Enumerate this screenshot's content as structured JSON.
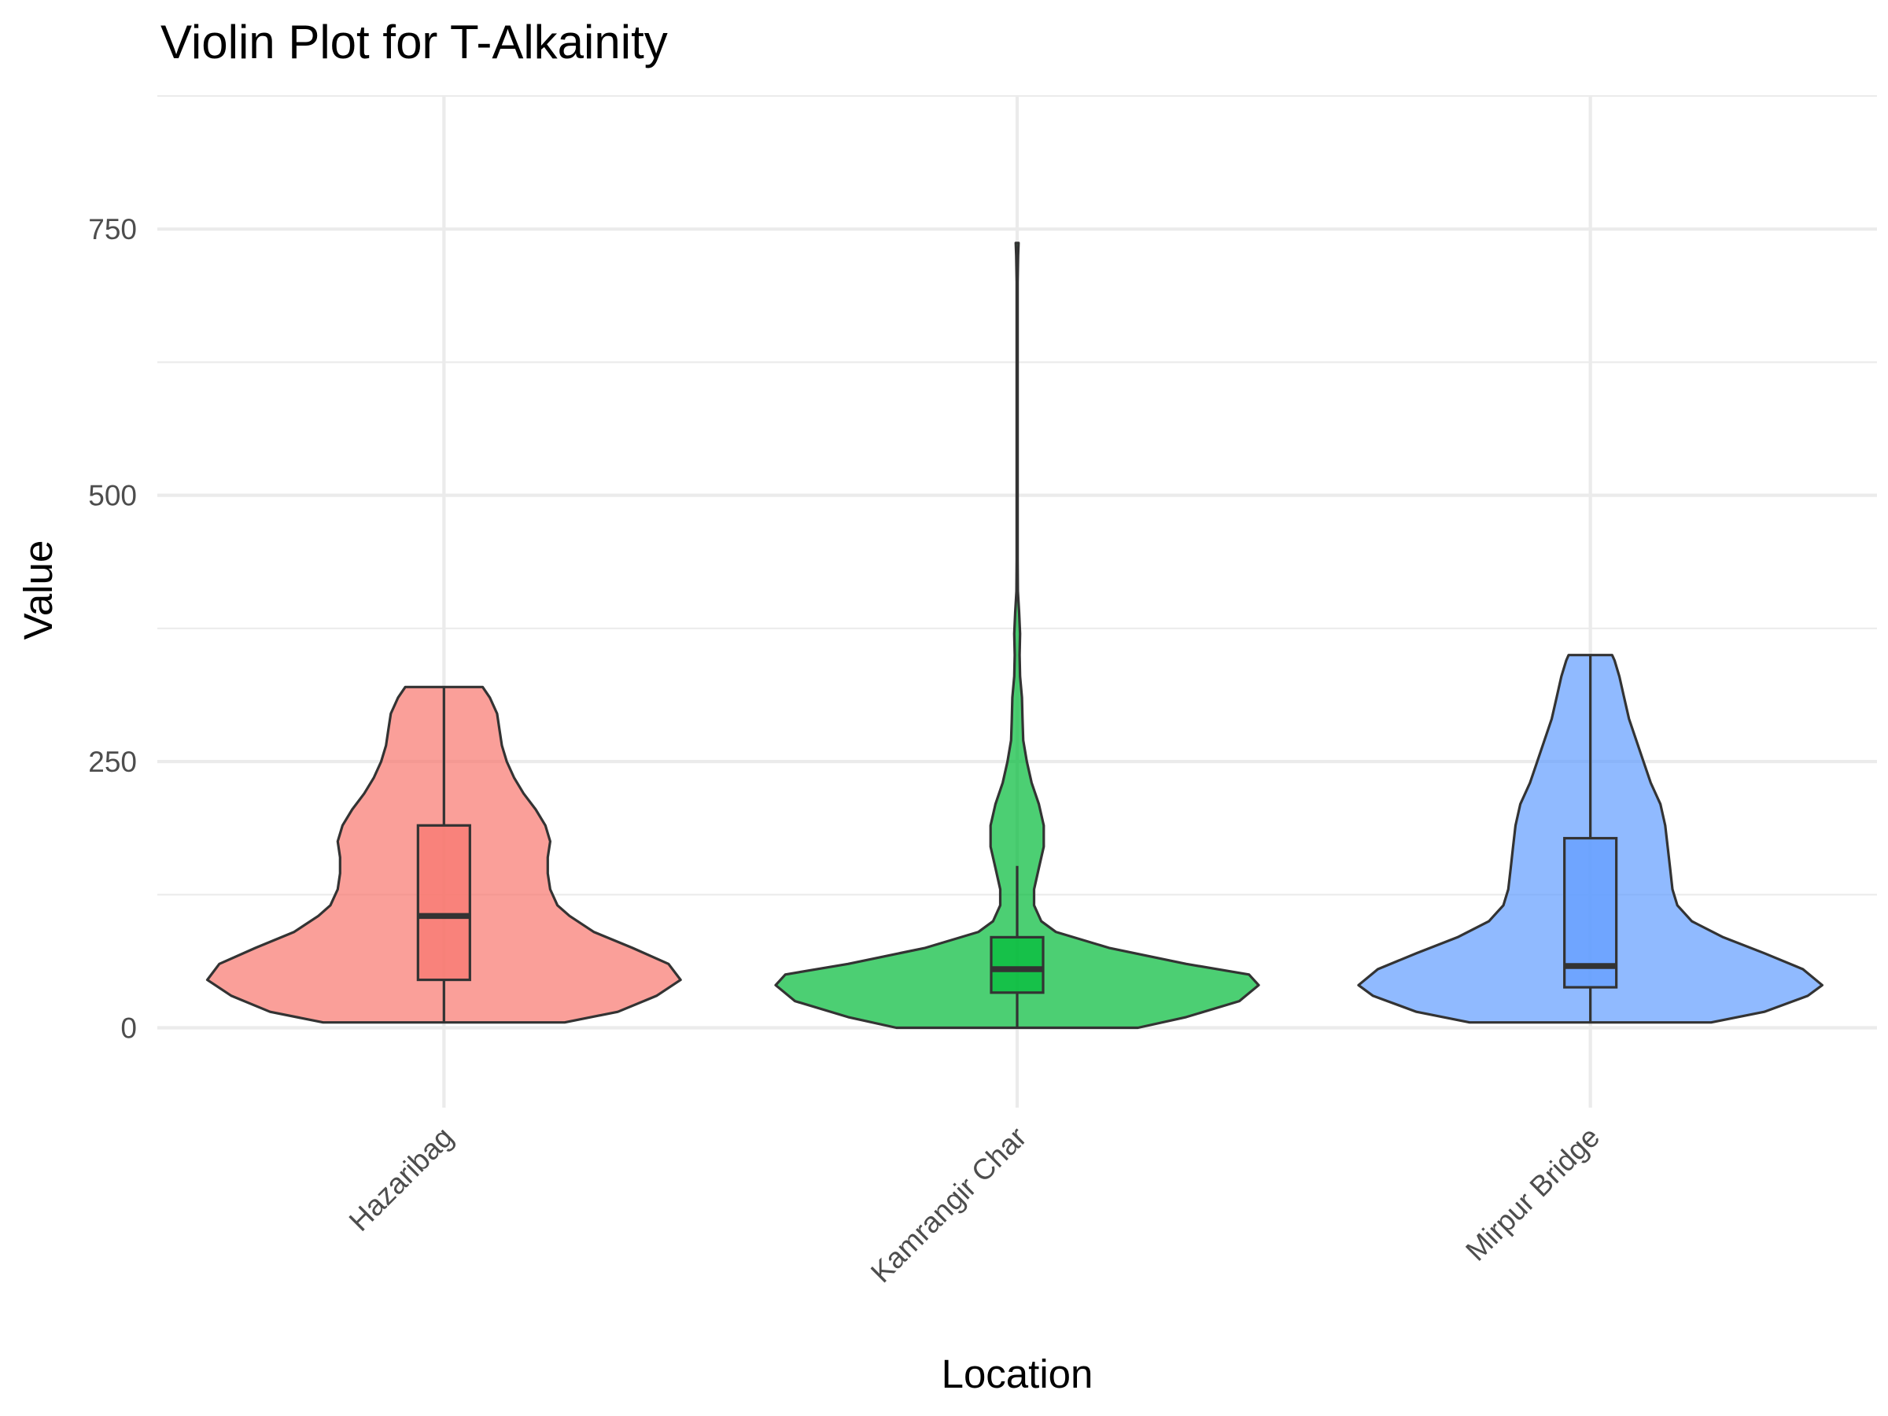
{
  "title": "Violin Plot for T-Alkainity",
  "chart_data": {
    "type": "violin",
    "title": "Violin Plot for T-Alkainity",
    "xlabel": "Location",
    "ylabel": "Value",
    "ylim": [
      -75,
      875
    ],
    "y_ticks": [
      0,
      250,
      500,
      750
    ],
    "y_tick_labels": [
      "0",
      "250",
      "500",
      "750"
    ],
    "grid": true,
    "legend": "none",
    "categories": [
      "Hazaribag",
      "Kamrangir Char",
      "Mirpur Bridge"
    ],
    "series": [
      {
        "category": "Hazaribag",
        "color": "#F8766D",
        "box": {
          "whisker_low": 5,
          "q1": 45,
          "median": 105,
          "q3": 190,
          "whisker_high": 320
        },
        "density": [
          [
            5,
            0.5
          ],
          [
            15,
            0.72
          ],
          [
            30,
            0.88
          ],
          [
            45,
            0.98
          ],
          [
            60,
            0.93
          ],
          [
            75,
            0.78
          ],
          [
            90,
            0.62
          ],
          [
            105,
            0.52
          ],
          [
            115,
            0.47
          ],
          [
            130,
            0.44
          ],
          [
            145,
            0.43
          ],
          [
            160,
            0.43
          ],
          [
            175,
            0.44
          ],
          [
            190,
            0.42
          ],
          [
            205,
            0.38
          ],
          [
            220,
            0.33
          ],
          [
            235,
            0.29
          ],
          [
            250,
            0.26
          ],
          [
            265,
            0.24
          ],
          [
            280,
            0.23
          ],
          [
            295,
            0.22
          ],
          [
            310,
            0.19
          ],
          [
            320,
            0.16
          ]
        ]
      },
      {
        "category": "Kamrangir Char",
        "color": "#00BA38",
        "box": {
          "whisker_low": 0,
          "q1": 33,
          "median": 55,
          "q3": 85,
          "whisker_high": 152
        },
        "density": [
          [
            0,
            0.5
          ],
          [
            10,
            0.7
          ],
          [
            25,
            0.92
          ],
          [
            40,
            1.0
          ],
          [
            50,
            0.96
          ],
          [
            60,
            0.7
          ],
          [
            75,
            0.38
          ],
          [
            90,
            0.16
          ],
          [
            100,
            0.1
          ],
          [
            115,
            0.07
          ],
          [
            130,
            0.07
          ],
          [
            150,
            0.09
          ],
          [
            170,
            0.11
          ],
          [
            190,
            0.11
          ],
          [
            210,
            0.09
          ],
          [
            230,
            0.06
          ],
          [
            250,
            0.04
          ],
          [
            270,
            0.025
          ],
          [
            290,
            0.022
          ],
          [
            310,
            0.02
          ],
          [
            330,
            0.012
          ],
          [
            350,
            0.01
          ],
          [
            370,
            0.012
          ],
          [
            390,
            0.008
          ],
          [
            410,
            0.003
          ],
          [
            440,
            0.002
          ],
          [
            500,
            0.002
          ],
          [
            600,
            0.002
          ],
          [
            700,
            0.002
          ],
          [
            725,
            0.004
          ],
          [
            737,
            0.006
          ]
        ]
      },
      {
        "category": "Mirpur Bridge",
        "color": "#619CFF",
        "box": {
          "whisker_low": 5,
          "q1": 38,
          "median": 58,
          "q3": 178,
          "whisker_high": 350
        },
        "density": [
          [
            5,
            0.5
          ],
          [
            15,
            0.72
          ],
          [
            30,
            0.9
          ],
          [
            40,
            0.96
          ],
          [
            55,
            0.88
          ],
          [
            70,
            0.72
          ],
          [
            85,
            0.55
          ],
          [
            100,
            0.42
          ],
          [
            115,
            0.36
          ],
          [
            130,
            0.34
          ],
          [
            150,
            0.33
          ],
          [
            170,
            0.32
          ],
          [
            190,
            0.31
          ],
          [
            210,
            0.29
          ],
          [
            230,
            0.25
          ],
          [
            250,
            0.22
          ],
          [
            270,
            0.19
          ],
          [
            290,
            0.16
          ],
          [
            310,
            0.14
          ],
          [
            330,
            0.12
          ],
          [
            345,
            0.1
          ],
          [
            350,
            0.09
          ]
        ]
      }
    ]
  }
}
